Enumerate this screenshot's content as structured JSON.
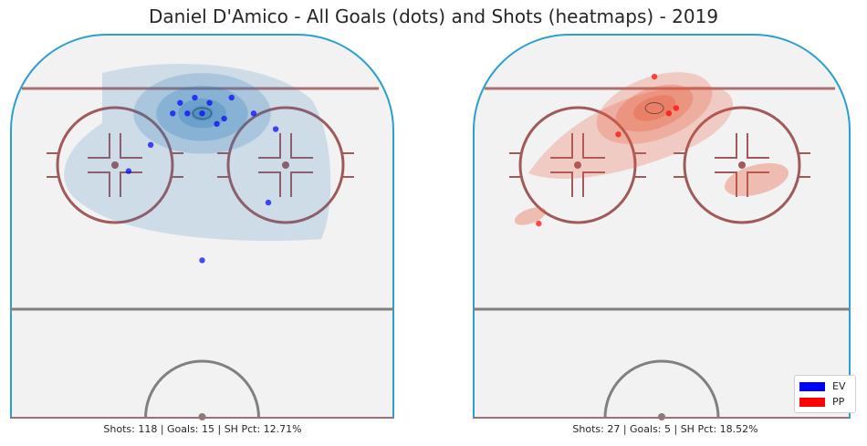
{
  "chart_data": {
    "type": "scatter",
    "title": "Daniel D'Amico - All Goals (dots) and Shots (heatmaps) - 2019",
    "legend": {
      "placement": "bottom-right",
      "entries": [
        {
          "label": "EV",
          "color": "#0000ff"
        },
        {
          "label": "PP",
          "color": "#ff0000"
        }
      ]
    },
    "panels": [
      {
        "situation": "EV",
        "caption": "Shots: 118 | Goals: 15 | SH Pct: 12.71%",
        "heatmap_color": "#2b7bba",
        "goals": [
          {
            "x": 16,
            "y": 35
          },
          {
            "x": 15,
            "y": 33
          },
          {
            "x": 14,
            "y": 36
          },
          {
            "x": 12,
            "y": 35
          },
          {
            "x": 11,
            "y": 33
          },
          {
            "x": 19,
            "y": 36
          },
          {
            "x": 17,
            "y": 31
          },
          {
            "x": 25,
            "y": 30
          },
          {
            "x": 22,
            "y": 33
          },
          {
            "x": 5,
            "y": 22
          },
          {
            "x": 8,
            "y": 27
          },
          {
            "x": 24,
            "y": 16
          },
          {
            "x": 15,
            "y": 5
          },
          {
            "x": 13,
            "y": 33
          },
          {
            "x": 18,
            "y": 32
          }
        ],
        "shot_density_peak": {
          "x": 15,
          "y": 33
        }
      },
      {
        "situation": "PP",
        "caption": "Shots: 27 | Goals: 5 | SH Pct: 18.52%",
        "heatmap_color": "#e8593a",
        "goals": [
          {
            "x": 14,
            "y": 40
          },
          {
            "x": 17,
            "y": 34
          },
          {
            "x": 16,
            "y": 33
          },
          {
            "x": 9,
            "y": 29
          },
          {
            "x": -2,
            "y": 12
          }
        ],
        "shot_density_peak": {
          "x": 14,
          "y": 34
        }
      }
    ],
    "x_range": [
      -11,
      41
    ],
    "y_range": [
      -25,
      48
    ],
    "grid": false
  }
}
